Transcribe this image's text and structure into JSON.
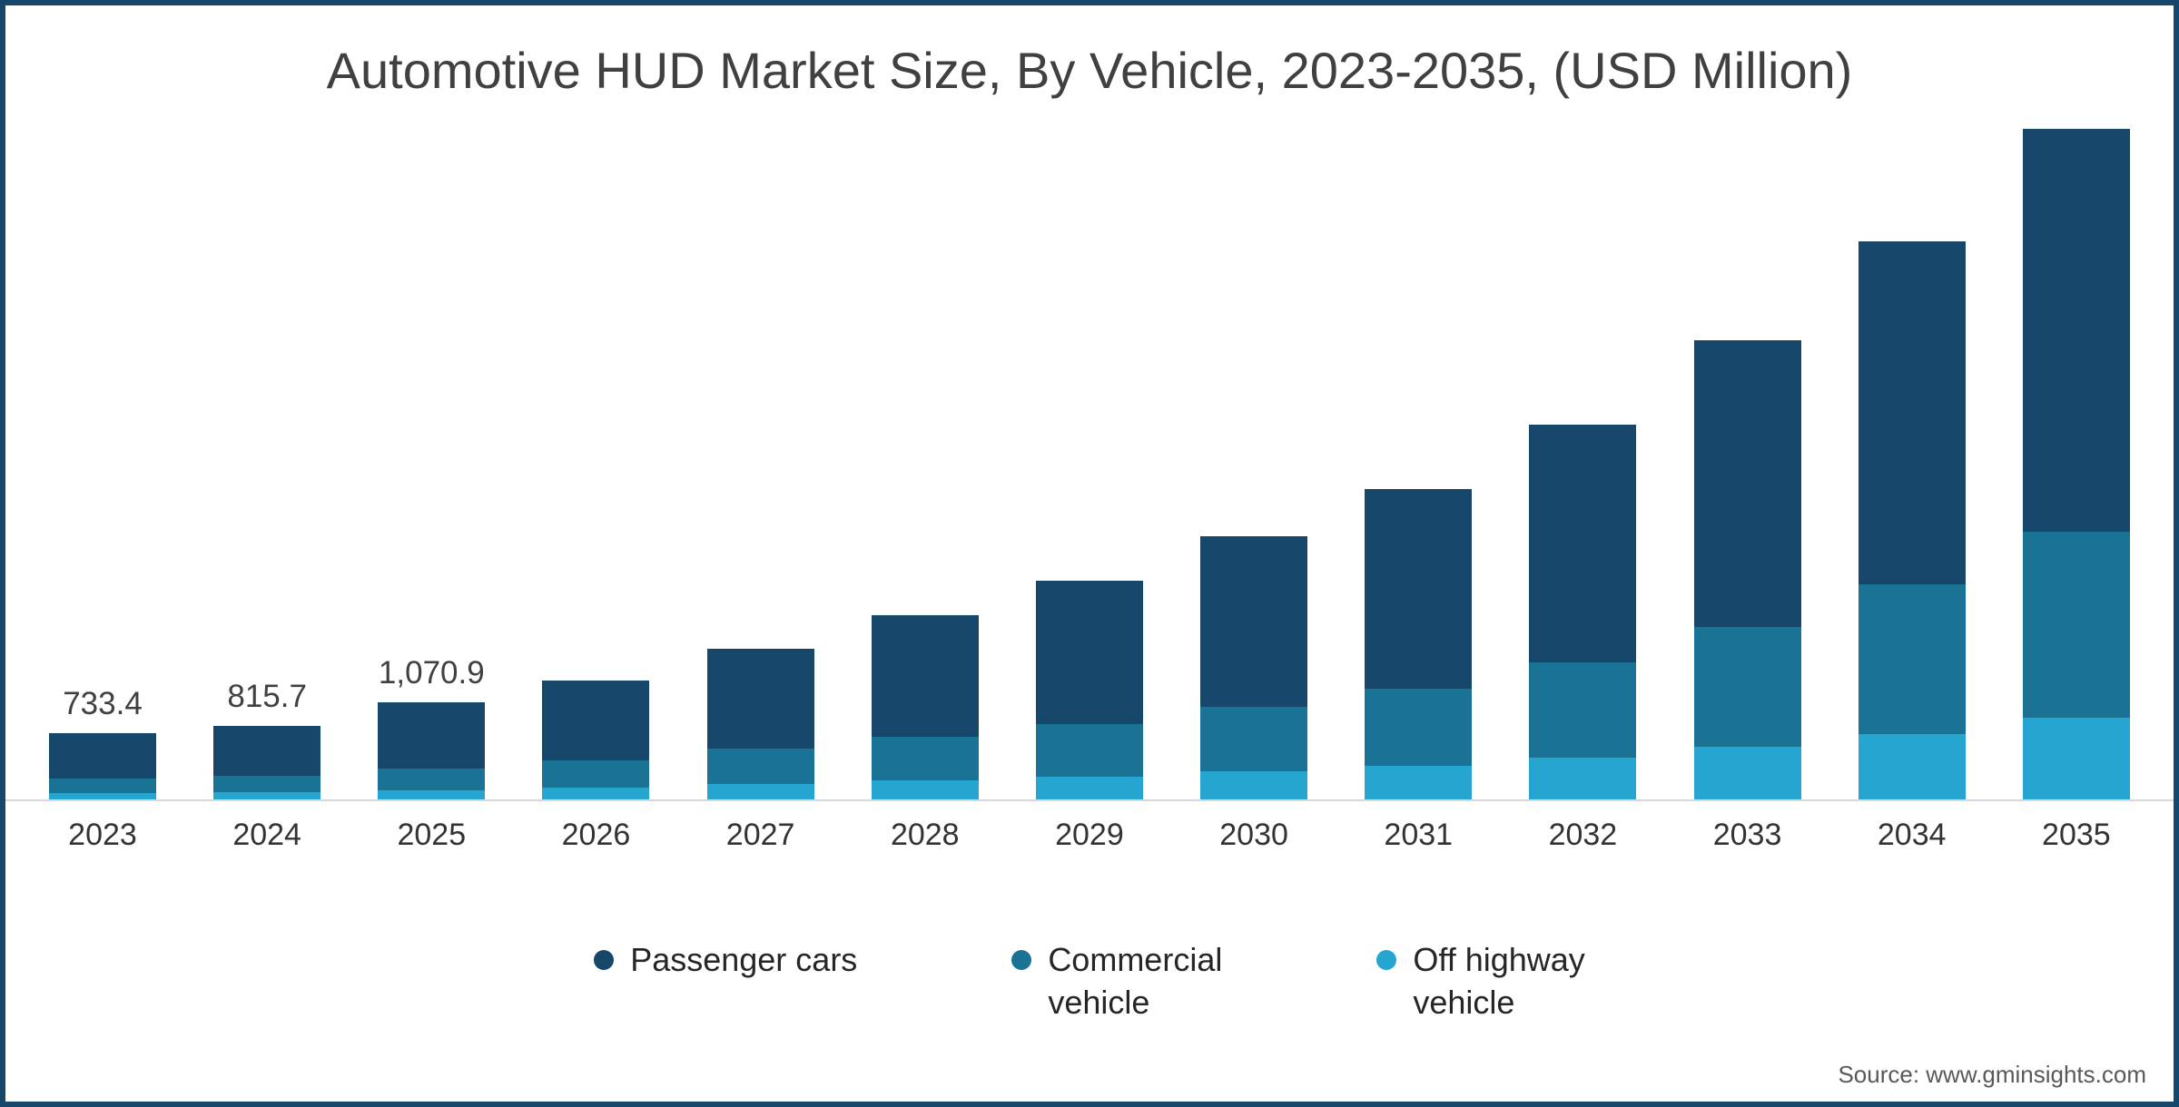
{
  "source": "Source: www.gminsights.com",
  "chart_data": {
    "type": "bar",
    "stacked": true,
    "title": "Automotive HUD Market Size, By Vehicle, 2023-2035, (USD Million)",
    "xlabel": "",
    "ylabel": "USD Million",
    "ylim": [
      0,
      7600
    ],
    "grid": false,
    "legend_position": "bottom",
    "categories": [
      "2023",
      "2024",
      "2025",
      "2026",
      "2027",
      "2028",
      "2029",
      "2030",
      "2031",
      "2032",
      "2033",
      "2034",
      "2035"
    ],
    "totals": [
      733.4,
      815.7,
      1070.9,
      1315,
      1665,
      2035,
      2415,
      2905,
      3425,
      4130,
      5065,
      6150,
      7390
    ],
    "data_labels": [
      "733.4",
      "815.7",
      "1,070.9",
      null,
      null,
      null,
      null,
      null,
      null,
      null,
      null,
      null,
      null
    ],
    "series": [
      {
        "name": "Passenger cars",
        "legend_label": "Passenger cars",
        "color": "#17466B",
        "values": [
          503.4,
          555.7,
          725.9,
          885,
          1105,
          1345,
          1580,
          1885,
          2200,
          2620,
          3165,
          3780,
          4440
        ]
      },
      {
        "name": "Commercial vehicle",
        "legend_label": "Commercial\nvehicle",
        "color": "#1A7295",
        "values": [
          160,
          180,
          240,
          300,
          390,
          480,
          580,
          710,
          850,
          1050,
          1320,
          1650,
          2050
        ]
      },
      {
        "name": "Off highway vehicle",
        "legend_label": "Off highway\nvehicle",
        "color": "#25A5D0",
        "values": [
          70,
          80,
          105,
          130,
          170,
          210,
          255,
          310,
          375,
          460,
          580,
          720,
          900
        ]
      }
    ]
  }
}
